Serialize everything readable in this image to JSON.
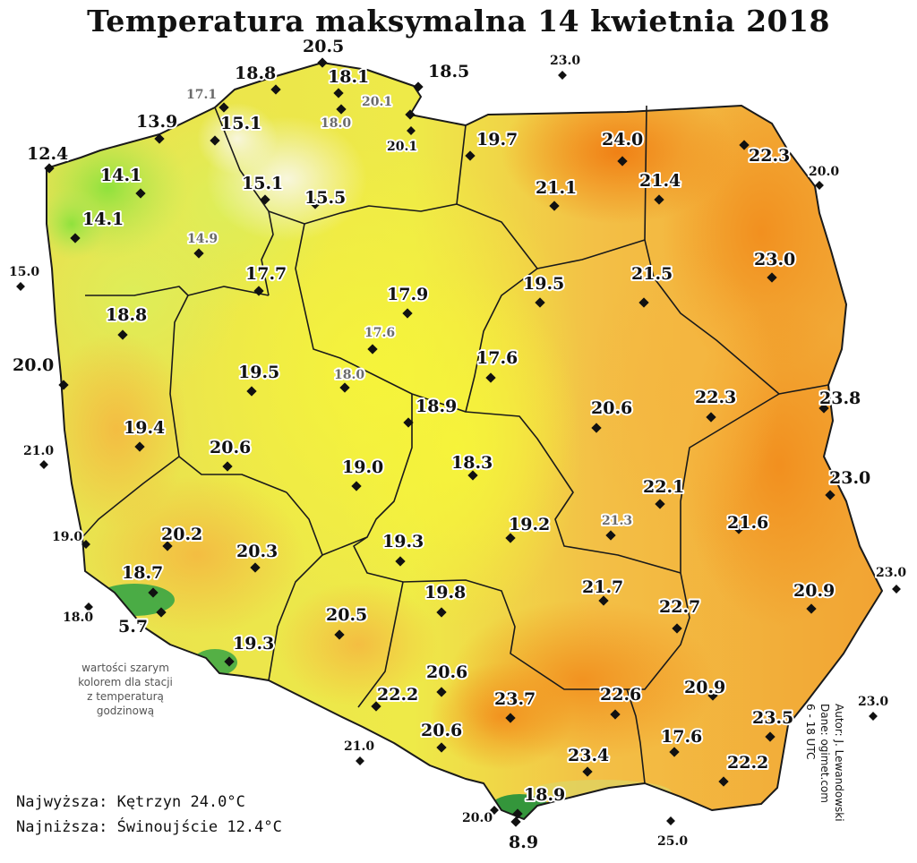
{
  "title": "Temperatura maksymalna 14 kwietnia 2018",
  "colors": {
    "scale_cool": "#7ee03a",
    "scale_light": "#f6f6d8",
    "scale_mid": "#f0f048",
    "scale_warm": "#f5b640",
    "scale_hot": "#f28a1a",
    "mountains": "#1f8f3a",
    "border": "#1a1a1a"
  },
  "note_lines": [
    "wartości szarym",
    "kolorem dla stacji",
    "z temperaturą",
    "godzinową"
  ],
  "extremes": {
    "max_line": "Najwyższa: Kętrzyn 24.0°C",
    "min_line": "Najniższa: Świnoujście 12.4°C"
  },
  "credits": [
    "Autor: J. Lewandowski",
    "Dane: ogimet.com",
    "6 - 18 UTC"
  ],
  "stations": [
    {
      "value": "18.8",
      "type": "in"
    },
    {
      "value": "20.5",
      "type": "in"
    },
    {
      "value": "18.1",
      "type": "in"
    },
    {
      "value": "18.5",
      "type": "in"
    },
    {
      "value": "23.0",
      "type": "outside"
    },
    {
      "value": "17.1",
      "type": "hourly"
    },
    {
      "value": "20.1",
      "type": "hourly"
    },
    {
      "value": "13.9",
      "type": "in"
    },
    {
      "value": "15.1",
      "type": "in"
    },
    {
      "value": "18.0",
      "type": "hourly"
    },
    {
      "value": "20.1",
      "type": "outside"
    },
    {
      "value": "12.4",
      "type": "in"
    },
    {
      "value": "19.7",
      "type": "in"
    },
    {
      "value": "24.0",
      "type": "in"
    },
    {
      "value": "22.3",
      "type": "in"
    },
    {
      "value": "14.1",
      "type": "in"
    },
    {
      "value": "15.1",
      "type": "in"
    },
    {
      "value": "15.5",
      "type": "in"
    },
    {
      "value": "21.1",
      "type": "in"
    },
    {
      "value": "21.4",
      "type": "in"
    },
    {
      "value": "20.0",
      "type": "outside"
    },
    {
      "value": "14.1",
      "type": "in"
    },
    {
      "value": "14.9",
      "type": "hourly"
    },
    {
      "value": "15.0",
      "type": "outside"
    },
    {
      "value": "17.7",
      "type": "in"
    },
    {
      "value": "23.0",
      "type": "in"
    },
    {
      "value": "17.9",
      "type": "in"
    },
    {
      "value": "19.5",
      "type": "in"
    },
    {
      "value": "21.5",
      "type": "in"
    },
    {
      "value": "18.8",
      "type": "in"
    },
    {
      "value": "17.6",
      "type": "hourly"
    },
    {
      "value": "20.0",
      "type": "in"
    },
    {
      "value": "19.5",
      "type": "in"
    },
    {
      "value": "18.0",
      "type": "hourly"
    },
    {
      "value": "17.6",
      "type": "in"
    },
    {
      "value": "18.9",
      "type": "in"
    },
    {
      "value": "20.6",
      "type": "in"
    },
    {
      "value": "22.3",
      "type": "in"
    },
    {
      "value": "23.8",
      "type": "in"
    },
    {
      "value": "19.4",
      "type": "in"
    },
    {
      "value": "21.0",
      "type": "outside"
    },
    {
      "value": "20.6",
      "type": "in"
    },
    {
      "value": "19.0",
      "type": "in"
    },
    {
      "value": "18.3",
      "type": "in"
    },
    {
      "value": "23.0",
      "type": "in"
    },
    {
      "value": "22.1",
      "type": "in"
    },
    {
      "value": "19.0",
      "type": "outside"
    },
    {
      "value": "20.2",
      "type": "in"
    },
    {
      "value": "19.3",
      "type": "in"
    },
    {
      "value": "19.2",
      "type": "in"
    },
    {
      "value": "21.3",
      "type": "hourly"
    },
    {
      "value": "21.6",
      "type": "in"
    },
    {
      "value": "20.3",
      "type": "in"
    },
    {
      "value": "23.0",
      "type": "outside"
    },
    {
      "value": "18.7",
      "type": "in"
    },
    {
      "value": "19.8",
      "type": "in"
    },
    {
      "value": "21.7",
      "type": "in"
    },
    {
      "value": "20.9",
      "type": "in"
    },
    {
      "value": "18.0",
      "type": "outside"
    },
    {
      "value": "5.7",
      "type": "in"
    },
    {
      "value": "20.5",
      "type": "in"
    },
    {
      "value": "22.7",
      "type": "in"
    },
    {
      "value": "19.3",
      "type": "in"
    },
    {
      "value": "20.6",
      "type": "in"
    },
    {
      "value": "22.2",
      "type": "in"
    },
    {
      "value": "23.7",
      "type": "in"
    },
    {
      "value": "22.6",
      "type": "in"
    },
    {
      "value": "20.9",
      "type": "in"
    },
    {
      "value": "23.0",
      "type": "outside"
    },
    {
      "value": "23.5",
      "type": "in"
    },
    {
      "value": "20.6",
      "type": "in"
    },
    {
      "value": "17.6",
      "type": "in"
    },
    {
      "value": "21.0",
      "type": "outside"
    },
    {
      "value": "23.4",
      "type": "in"
    },
    {
      "value": "22.2",
      "type": "in"
    },
    {
      "value": "18.9",
      "type": "in"
    },
    {
      "value": "20.0",
      "type": "outside"
    },
    {
      "value": "8.9",
      "type": "in"
    },
    {
      "value": "25.0",
      "type": "outside"
    }
  ]
}
